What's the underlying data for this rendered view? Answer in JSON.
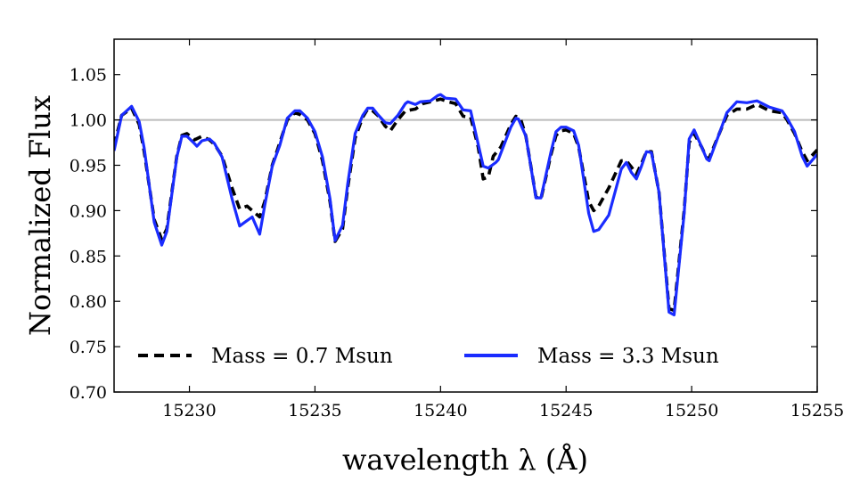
{
  "chart_data": {
    "type": "line",
    "title": "",
    "xlabel": "wavelength λ (Å)",
    "ylabel": "Normalized Flux",
    "xlim": [
      15227.0,
      15255.0
    ],
    "ylim": [
      0.7,
      1.089
    ],
    "xticks": [
      15230,
      15235,
      15240,
      15245,
      15250,
      15255
    ],
    "yticks": [
      0.7,
      0.75,
      0.8,
      0.85,
      0.9,
      0.95,
      1.0,
      1.05
    ],
    "ytick_labels": [
      "0.70",
      "0.75",
      "0.80",
      "0.85",
      "0.90",
      "0.95",
      "1.00",
      "1.05"
    ],
    "xtick_labels": [
      "15230",
      "15235",
      "15240",
      "15245",
      "15250",
      "15255"
    ],
    "reference_line": {
      "y": 1.0,
      "color": "#bbbbbb"
    },
    "grid": false,
    "legend": {
      "placement": "bottom-inside",
      "columns": 2
    },
    "series": [
      {
        "name": "Mass = 0.7 Msun",
        "color": "#000000",
        "style": "dashed",
        "x": [
          15227.0,
          15227.3,
          15227.7,
          15228.0,
          15228.2,
          15228.6,
          15228.9,
          15229.1,
          15229.5,
          15229.7,
          15229.9,
          15230.2,
          15230.5,
          15230.8,
          15231.0,
          15231.3,
          15231.7,
          15232.0,
          15232.3,
          15232.5,
          15232.8,
          15233.0,
          15233.3,
          15233.6,
          15233.9,
          15234.2,
          15234.4,
          15234.7,
          15235.0,
          15235.3,
          15235.6,
          15235.8,
          15236.1,
          15236.3,
          15236.6,
          15236.9,
          15237.1,
          15237.3,
          15237.5,
          15237.8,
          15238.0,
          15238.3,
          15238.6,
          15239.0,
          15239.3,
          15239.6,
          15240.0,
          15240.3,
          15240.6,
          15240.9,
          15241.2,
          15241.5,
          15241.7,
          15241.9,
          15242.1,
          15242.4,
          15242.8,
          15243.0,
          15243.2,
          15243.4,
          15243.8,
          15244.0,
          15244.4,
          15244.6,
          15244.8,
          15245.0,
          15245.3,
          15245.5,
          15245.9,
          15246.1,
          15246.3,
          15246.7,
          15247.2,
          15247.4,
          15247.6,
          15247.8,
          15248.0,
          15248.2,
          15248.4,
          15248.7,
          15249.1,
          15249.3,
          15249.7,
          15249.9,
          15250.1,
          15250.4,
          15250.6,
          15250.7,
          15251.1,
          15251.4,
          15251.8,
          15252.2,
          15252.6,
          15253.1,
          15253.6,
          15253.8,
          15254.1,
          15254.4,
          15254.6,
          15255.0
        ],
        "y": [
          0.972,
          1.005,
          1.013,
          0.995,
          0.965,
          0.89,
          0.868,
          0.88,
          0.96,
          0.983,
          0.985,
          0.978,
          0.982,
          0.978,
          0.973,
          0.96,
          0.925,
          0.902,
          0.905,
          0.9,
          0.893,
          0.91,
          0.95,
          0.975,
          1.0,
          1.008,
          1.006,
          1.0,
          0.985,
          0.955,
          0.91,
          0.866,
          0.88,
          0.925,
          0.98,
          1.003,
          1.012,
          1.01,
          1.005,
          0.993,
          0.988,
          1.0,
          1.01,
          1.012,
          1.018,
          1.02,
          1.023,
          1.02,
          1.018,
          1.004,
          1.003,
          0.97,
          0.935,
          0.937,
          0.96,
          0.97,
          0.995,
          1.004,
          1.0,
          0.982,
          0.915,
          0.913,
          0.962,
          0.983,
          0.988,
          0.989,
          0.985,
          0.97,
          0.91,
          0.9,
          0.905,
          0.925,
          0.955,
          0.955,
          0.948,
          0.94,
          0.952,
          0.965,
          0.965,
          0.92,
          0.792,
          0.79,
          0.9,
          0.975,
          0.985,
          0.97,
          0.958,
          0.958,
          0.985,
          1.005,
          1.012,
          1.012,
          1.017,
          1.01,
          1.008,
          1.0,
          0.985,
          0.965,
          0.955,
          0.967
        ]
      },
      {
        "name": "Mass = 3.3 Msun",
        "color": "#1a2cff",
        "style": "solid",
        "x": [
          15227.0,
          15227.3,
          15227.7,
          15228.0,
          15228.2,
          15228.6,
          15228.9,
          15229.1,
          15229.5,
          15229.7,
          15229.9,
          15230.2,
          15230.3,
          15230.5,
          15230.8,
          15231.0,
          15231.3,
          15231.7,
          15232.0,
          15232.2,
          15232.5,
          15232.8,
          15233.0,
          15233.3,
          15233.6,
          15233.9,
          15234.2,
          15234.4,
          15234.7,
          15235.0,
          15235.3,
          15235.6,
          15235.8,
          15236.1,
          15236.3,
          15236.6,
          15236.9,
          15237.1,
          15237.3,
          15237.5,
          15237.8,
          15238.0,
          15238.3,
          15238.6,
          15238.7,
          15239.0,
          15239.2,
          15239.6,
          15239.9,
          15240.0,
          15240.2,
          15240.6,
          15240.9,
          15241.2,
          15241.7,
          15241.9,
          15242.2,
          15242.3,
          15242.8,
          15243.0,
          15243.1,
          15243.4,
          15243.8,
          15244.0,
          15244.4,
          15244.6,
          15244.8,
          15245.0,
          15245.3,
          15245.5,
          15245.9,
          15246.1,
          15246.3,
          15246.7,
          15247.2,
          15247.4,
          15247.6,
          15247.8,
          15248.0,
          15248.2,
          15248.4,
          15248.7,
          15249.1,
          15249.3,
          15249.7,
          15249.9,
          15250.1,
          15250.4,
          15250.6,
          15250.7,
          15251.1,
          15251.4,
          15251.8,
          15252.2,
          15252.6,
          15253.1,
          15253.6,
          15253.8,
          15254.1,
          15254.4,
          15254.6,
          15255.0
        ],
        "y": [
          0.966,
          1.005,
          1.015,
          0.998,
          0.969,
          0.887,
          0.862,
          0.877,
          0.959,
          0.982,
          0.982,
          0.974,
          0.971,
          0.977,
          0.979,
          0.974,
          0.959,
          0.913,
          0.883,
          0.887,
          0.893,
          0.874,
          0.906,
          0.949,
          0.972,
          1.002,
          1.01,
          1.01,
          1.002,
          0.987,
          0.959,
          0.913,
          0.867,
          0.884,
          0.929,
          0.985,
          1.005,
          1.013,
          1.013,
          1.006,
          0.997,
          0.996,
          1.005,
          1.018,
          1.02,
          1.017,
          1.02,
          1.021,
          1.027,
          1.028,
          1.024,
          1.023,
          1.011,
          1.01,
          0.949,
          0.947,
          0.953,
          0.956,
          0.992,
          1.002,
          1.001,
          0.982,
          0.914,
          0.914,
          0.965,
          0.987,
          0.992,
          0.992,
          0.988,
          0.972,
          0.897,
          0.877,
          0.879,
          0.895,
          0.946,
          0.953,
          0.942,
          0.935,
          0.949,
          0.965,
          0.964,
          0.92,
          0.788,
          0.785,
          0.897,
          0.979,
          0.989,
          0.97,
          0.957,
          0.955,
          0.985,
          1.008,
          1.02,
          1.019,
          1.021,
          1.014,
          1.01,
          1.002,
          0.987,
          0.96,
          0.949,
          0.962
        ]
      }
    ]
  }
}
